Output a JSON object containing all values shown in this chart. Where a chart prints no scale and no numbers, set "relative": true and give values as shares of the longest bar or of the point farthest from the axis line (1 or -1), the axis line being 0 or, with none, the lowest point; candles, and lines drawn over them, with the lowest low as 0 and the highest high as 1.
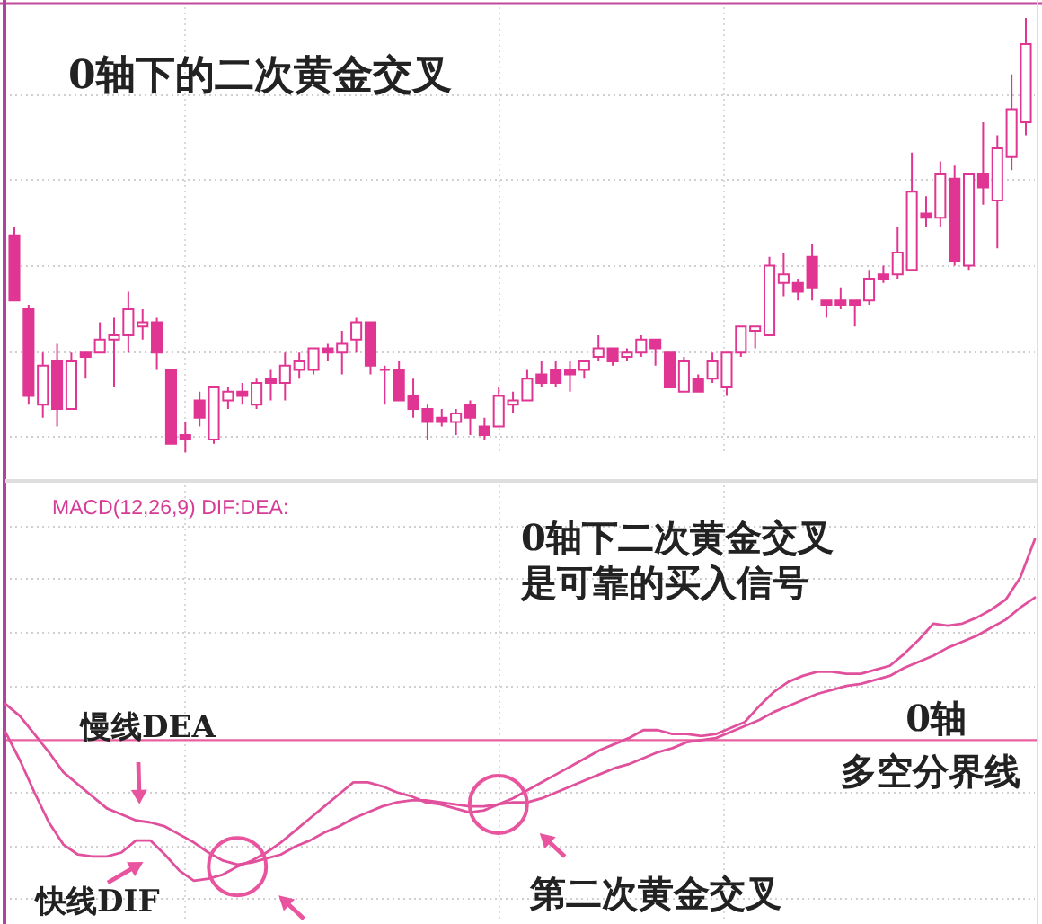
{
  "chart_data": [
    {
      "type": "candlestick",
      "title": "0轴下的二次黄金交叉",
      "relative": true,
      "grid": true,
      "color": "#e03592",
      "categories": [
        null,
        null,
        null,
        null,
        null,
        null,
        null,
        null,
        null,
        null,
        null,
        null,
        null,
        null,
        null,
        null,
        null,
        null,
        null,
        null,
        null,
        null,
        null,
        null,
        null,
        null,
        null,
        null,
        null,
        null,
        null,
        null,
        null,
        null,
        null,
        null,
        null,
        null,
        null,
        null,
        null,
        null,
        null,
        null,
        null,
        null,
        null,
        null,
        null,
        null,
        null,
        null,
        null,
        null,
        null,
        null,
        null,
        null,
        null,
        null,
        null,
        null,
        null,
        null,
        null,
        null,
        null,
        null,
        null,
        null,
        null,
        null
      ],
      "ohlc": [
        [
          0.5,
          0.52,
          0.35,
          0.35
        ],
        [
          0.33,
          0.34,
          0.11,
          0.13
        ],
        [
          0.11,
          0.23,
          0.08,
          0.2
        ],
        [
          0.21,
          0.25,
          0.06,
          0.1
        ],
        [
          0.1,
          0.23,
          0.1,
          0.21
        ],
        [
          0.23,
          0.23,
          0.17,
          0.22
        ],
        [
          0.23,
          0.3,
          0.23,
          0.26
        ],
        [
          0.26,
          0.31,
          0.15,
          0.27
        ],
        [
          0.27,
          0.37,
          0.23,
          0.33
        ],
        [
          0.29,
          0.33,
          0.26,
          0.3
        ],
        [
          0.3,
          0.31,
          0.19,
          0.23
        ],
        [
          0.19,
          0.19,
          0.02,
          0.02
        ],
        [
          0.04,
          0.07,
          0,
          0.03
        ],
        [
          0.12,
          0.14,
          0.06,
          0.08
        ],
        [
          0.03,
          0.15,
          0.02,
          0.15
        ],
        [
          0.12,
          0.15,
          0.1,
          0.14
        ],
        [
          0.14,
          0.16,
          0.11,
          0.13
        ],
        [
          0.11,
          0.17,
          0.1,
          0.16
        ],
        [
          0.17,
          0.19,
          0.12,
          0.16
        ],
        [
          0.16,
          0.23,
          0.12,
          0.2
        ],
        [
          0.19,
          0.23,
          0.17,
          0.21
        ],
        [
          0.19,
          0.24,
          0.18,
          0.24
        ],
        [
          0.24,
          0.25,
          0.21,
          0.23
        ],
        [
          0.23,
          0.28,
          0.18,
          0.25
        ],
        [
          0.26,
          0.31,
          0.23,
          0.3
        ],
        [
          0.3,
          0.3,
          0.18,
          0.2
        ],
        [
          0.19,
          0.2,
          0.11,
          0.19
        ],
        [
          0.19,
          0.21,
          0.12,
          0.12
        ],
        [
          0.13,
          0.17,
          0.08,
          0.1
        ],
        [
          0.1,
          0.11,
          0.03,
          0.07
        ],
        [
          0.08,
          0.1,
          0.06,
          0.07
        ],
        [
          0.07,
          0.1,
          0.04,
          0.09
        ],
        [
          0.11,
          0.12,
          0.04,
          0.08
        ],
        [
          0.06,
          0.08,
          0.03,
          0.04
        ],
        [
          0.06,
          0.15,
          0.06,
          0.13
        ],
        [
          0.11,
          0.14,
          0.09,
          0.12
        ],
        [
          0.12,
          0.19,
          0.12,
          0.17
        ],
        [
          0.18,
          0.21,
          0.15,
          0.16
        ],
        [
          0.19,
          0.21,
          0.15,
          0.16
        ],
        [
          0.19,
          0.21,
          0.14,
          0.18
        ],
        [
          0.19,
          0.21,
          0.17,
          0.21
        ],
        [
          0.22,
          0.27,
          0.21,
          0.24
        ],
        [
          0.24,
          0.24,
          0.2,
          0.21
        ],
        [
          0.22,
          0.24,
          0.21,
          0.23
        ],
        [
          0.23,
          0.27,
          0.22,
          0.26
        ],
        [
          0.26,
          0.26,
          0.2,
          0.24
        ],
        [
          0.23,
          0.23,
          0.15,
          0.15
        ],
        [
          0.14,
          0.22,
          0.14,
          0.21
        ],
        [
          0.17,
          0.18,
          0.14,
          0.14
        ],
        [
          0.17,
          0.23,
          0.16,
          0.21
        ],
        [
          0.15,
          0.23,
          0.13,
          0.23
        ],
        [
          0.23,
          0.29,
          0.22,
          0.29
        ],
        [
          0.28,
          0.29,
          0.24,
          0.29
        ],
        [
          0.27,
          0.45,
          0.27,
          0.43
        ],
        [
          0.39,
          0.46,
          0.36,
          0.41
        ],
        [
          0.39,
          0.4,
          0.35,
          0.37
        ],
        [
          0.45,
          0.48,
          0.35,
          0.38
        ],
        [
          0.35,
          0.35,
          0.31,
          0.34
        ],
        [
          0.35,
          0.38,
          0.33,
          0.34
        ],
        [
          0.35,
          0.35,
          0.29,
          0.34
        ],
        [
          0.35,
          0.42,
          0.34,
          0.4
        ],
        [
          0.41,
          0.43,
          0.39,
          0.4
        ],
        [
          0.41,
          0.52,
          0.4,
          0.46
        ],
        [
          0.42,
          0.69,
          0.42,
          0.6
        ],
        [
          0.55,
          0.59,
          0.52,
          0.54
        ],
        [
          0.54,
          0.67,
          0.52,
          0.64
        ],
        [
          0.63,
          0.66,
          0.43,
          0.44
        ],
        [
          0.43,
          0.64,
          0.42,
          0.64
        ],
        [
          0.64,
          0.76,
          0.57,
          0.61
        ],
        [
          0.58,
          0.73,
          0.47,
          0.7
        ],
        [
          0.68,
          0.87,
          0.65,
          0.79
        ],
        [
          0.76,
          1,
          0.73,
          0.94
        ]
      ]
    },
    {
      "type": "line",
      "title": "MACD(12,26,9) DIF:DEA:",
      "relative": true,
      "grid": true,
      "categories": [
        null,
        null,
        null,
        null,
        null,
        null,
        null,
        null,
        null,
        null,
        null,
        null,
        null,
        null,
        null,
        null,
        null,
        null,
        null,
        null,
        null,
        null,
        null,
        null,
        null,
        null,
        null,
        null,
        null,
        null,
        null,
        null,
        null,
        null,
        null,
        null,
        null,
        null,
        null,
        null,
        null,
        null,
        null,
        null,
        null,
        null,
        null,
        null,
        null,
        null,
        null,
        null,
        null,
        null,
        null,
        null,
        null,
        null,
        null,
        null,
        null,
        null,
        null,
        null,
        null,
        null,
        null,
        null,
        null,
        null,
        null,
        null
      ],
      "series": [
        {
          "color": "#e0509c",
          "values": [
            0.04,
            -0.1,
            -0.26,
            -0.41,
            -0.52,
            -0.57,
            -0.58,
            -0.58,
            -0.56,
            -0.5,
            -0.5,
            -0.57,
            -0.65,
            -0.7,
            -0.69,
            -0.67,
            -0.63,
            -0.6,
            -0.56,
            -0.51,
            -0.45,
            -0.39,
            -0.33,
            -0.27,
            -0.21,
            -0.21,
            -0.23,
            -0.26,
            -0.28,
            -0.31,
            -0.32,
            -0.34,
            -0.36,
            -0.35,
            -0.32,
            -0.29,
            -0.25,
            -0.21,
            -0.17,
            -0.13,
            -0.09,
            -0.05,
            -0.02,
            0.01,
            0.05,
            0.05,
            0.03,
            0.03,
            0.02,
            0.03,
            0.06,
            0.09,
            0.17,
            0.24,
            0.29,
            0.32,
            0.34,
            0.34,
            0.33,
            0.33,
            0.35,
            0.37,
            0.43,
            0.5,
            0.58,
            0.57,
            0.58,
            0.61,
            0.65,
            0.7,
            0.81,
            1.0
          ]
        },
        {
          "color": "#e0509c",
          "values": [
            0.18,
            0.12,
            0.03,
            -0.06,
            -0.16,
            -0.22,
            -0.28,
            -0.34,
            -0.37,
            -0.4,
            -0.41,
            -0.43,
            -0.47,
            -0.51,
            -0.56,
            -0.6,
            -0.62,
            -0.61,
            -0.59,
            -0.57,
            -0.53,
            -0.5,
            -0.46,
            -0.43,
            -0.39,
            -0.36,
            -0.33,
            -0.31,
            -0.3,
            -0.3,
            -0.31,
            -0.32,
            -0.33,
            -0.33,
            -0.32,
            -0.31,
            -0.31,
            -0.29,
            -0.26,
            -0.23,
            -0.2,
            -0.17,
            -0.14,
            -0.12,
            -0.09,
            -0.06,
            -0.04,
            -0.01,
            0.0,
            0.01,
            0.04,
            0.07,
            0.1,
            0.14,
            0.17,
            0.2,
            0.23,
            0.25,
            0.27,
            0.28,
            0.3,
            0.32,
            0.36,
            0.39,
            0.42,
            0.46,
            0.49,
            0.52,
            0.56,
            0.6,
            0.66,
            0.71
          ]
        }
      ],
      "ref_lines": [
        {
          "axis": "y",
          "value": 0,
          "label": "0轴",
          "color": "#e8609f"
        }
      ],
      "annotations": [
        "0轴下二次黄金交叉",
        "是可靠的买入信号",
        "慢线DEA",
        "多空分界线",
        "第二次黄金交叉",
        "快线DIF"
      ]
    }
  ]
}
